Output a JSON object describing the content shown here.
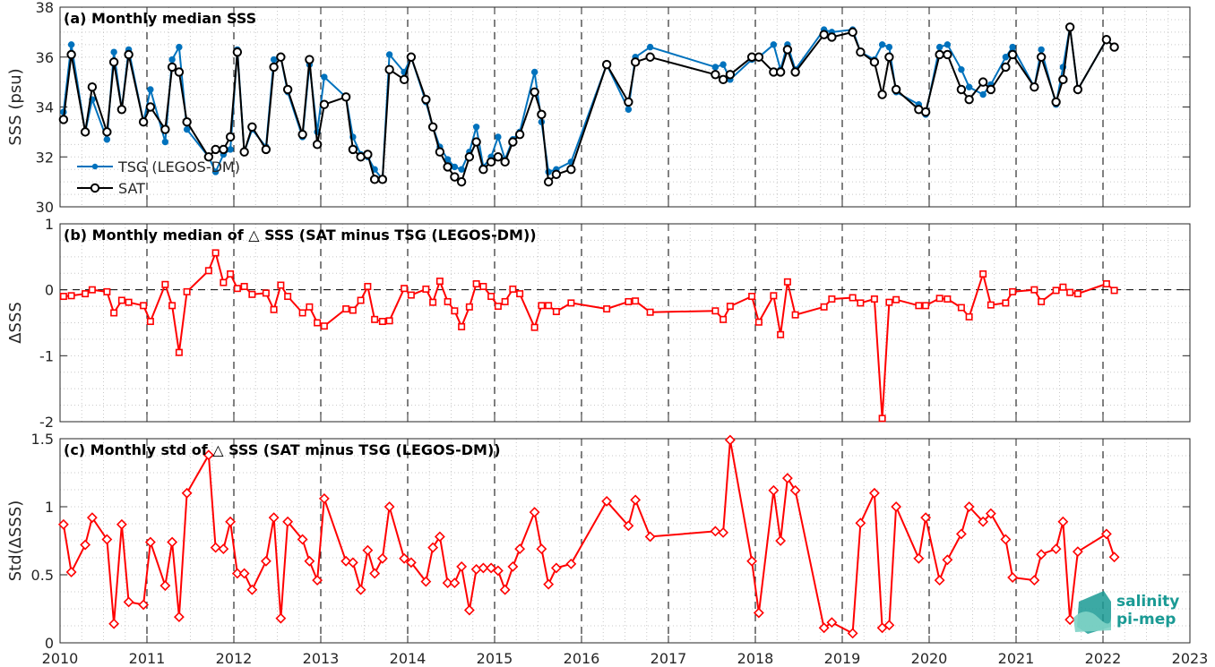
{
  "colors": {
    "tsg": "#0072bd",
    "sat": "#000000",
    "delta": "#ff0000",
    "logo": "#1a9a94"
  },
  "logo": {
    "line1": "salinity",
    "line2": "pi-mep",
    "icon": "wave-logo-icon"
  },
  "chart_data": [
    {
      "type": "line",
      "title": "(a) Monthly median SSS",
      "xlabel": "",
      "ylabel": "SSS (psu)",
      "xlim": [
        2010,
        2023
      ],
      "ylim": [
        30,
        38
      ],
      "yticks": [
        30,
        32,
        34,
        36,
        38
      ],
      "grid": true,
      "legend_position": "middle-left",
      "series": [
        {
          "name": "TSG (LEGOS-DM)",
          "marker": "dot",
          "x": [
            2010.04,
            2010.13,
            2010.29,
            2010.37,
            2010.54,
            2010.62,
            2010.71,
            2010.79,
            2010.96,
            2011.04,
            2011.21,
            2011.29,
            2011.37,
            2011.46,
            2011.71,
            2011.79,
            2011.88,
            2011.96,
            2012.04,
            2012.12,
            2012.21,
            2012.37,
            2012.46,
            2012.54,
            2012.62,
            2012.79,
            2012.87,
            2012.96,
            2013.04,
            2013.29,
            2013.37,
            2013.46,
            2013.54,
            2013.62,
            2013.71,
            2013.79,
            2013.96,
            2014.04,
            2014.21,
            2014.29,
            2014.37,
            2014.46,
            2014.54,
            2014.62,
            2014.71,
            2014.79,
            2014.87,
            2014.96,
            2015.04,
            2015.12,
            2015.21,
            2015.29,
            2015.46,
            2015.54,
            2015.62,
            2015.71,
            2015.88,
            2016.29,
            2016.54,
            2016.62,
            2016.79,
            2017.54,
            2017.63,
            2017.71,
            2017.96,
            2018.04,
            2018.21,
            2018.29,
            2018.37,
            2018.46,
            2018.79,
            2018.88,
            2019.12,
            2019.21,
            2019.37,
            2019.46,
            2019.54,
            2019.62,
            2019.88,
            2019.96,
            2020.12,
            2020.21,
            2020.37,
            2020.46,
            2020.62,
            2020.71,
            2020.88,
            2020.96,
            2021.21,
            2021.29,
            2021.46,
            2021.54,
            2021.62,
            2021.71,
            2022.04,
            2022.13
          ],
          "y": [
            33.8,
            36.5,
            33.0,
            34.3,
            32.7,
            36.2,
            33.9,
            36.3,
            33.4,
            34.7,
            32.6,
            35.9,
            36.4,
            33.1,
            32.0,
            31.4,
            32.1,
            32.3,
            36.3,
            32.2,
            33.1,
            32.4,
            35.9,
            36.0,
            34.6,
            32.8,
            35.7,
            33.0,
            35.2,
            34.4,
            32.8,
            32.1,
            32.0,
            31.5,
            31.1,
            36.1,
            35.4,
            36.0,
            34.2,
            33.2,
            32.4,
            31.9,
            31.6,
            31.5,
            32.2,
            33.2,
            31.6,
            32.0,
            32.8,
            31.9,
            32.7,
            33.0,
            35.4,
            33.4,
            31.4,
            31.5,
            31.8,
            35.7,
            33.9,
            36.0,
            36.4,
            35.6,
            35.7,
            35.1,
            35.9,
            36.0,
            36.5,
            35.5,
            36.5,
            35.5,
            37.1,
            37.0,
            37.1,
            36.2,
            35.9,
            36.5,
            36.4,
            34.6,
            34.1,
            33.7,
            36.4,
            36.5,
            35.5,
            34.8,
            34.5,
            34.9,
            36.0,
            36.4,
            34.8,
            36.3,
            34.1,
            35.6,
            37.2,
            34.7,
            36.7,
            36.4
          ]
        },
        {
          "name": "SAT",
          "marker": "circle",
          "x": [
            2010.04,
            2010.13,
            2010.29,
            2010.37,
            2010.54,
            2010.62,
            2010.71,
            2010.79,
            2010.96,
            2011.04,
            2011.21,
            2011.29,
            2011.37,
            2011.46,
            2011.71,
            2011.79,
            2011.88,
            2011.96,
            2012.04,
            2012.12,
            2012.21,
            2012.37,
            2012.46,
            2012.54,
            2012.62,
            2012.79,
            2012.87,
            2012.96,
            2013.04,
            2013.29,
            2013.37,
            2013.46,
            2013.54,
            2013.62,
            2013.71,
            2013.79,
            2013.96,
            2014.04,
            2014.21,
            2014.29,
            2014.37,
            2014.46,
            2014.54,
            2014.62,
            2014.71,
            2014.79,
            2014.87,
            2014.96,
            2015.04,
            2015.12,
            2015.21,
            2015.29,
            2015.46,
            2015.54,
            2015.62,
            2015.71,
            2015.88,
            2016.29,
            2016.54,
            2016.62,
            2016.79,
            2017.54,
            2017.63,
            2017.71,
            2017.96,
            2018.04,
            2018.21,
            2018.29,
            2018.37,
            2018.46,
            2018.79,
            2018.88,
            2019.12,
            2019.21,
            2019.37,
            2019.46,
            2019.54,
            2019.62,
            2019.88,
            2019.96,
            2020.12,
            2020.21,
            2020.37,
            2020.46,
            2020.62,
            2020.71,
            2020.88,
            2020.96,
            2021.21,
            2021.29,
            2021.46,
            2021.54,
            2021.62,
            2021.71,
            2022.04,
            2022.13
          ],
          "y": [
            33.5,
            36.1,
            33.0,
            34.8,
            33.0,
            35.8,
            33.9,
            36.1,
            33.4,
            34.0,
            33.1,
            35.6,
            35.4,
            33.4,
            32.0,
            32.3,
            32.3,
            32.8,
            36.2,
            32.2,
            33.2,
            32.3,
            35.6,
            36.0,
            34.7,
            32.9,
            35.9,
            32.5,
            34.1,
            34.4,
            32.3,
            32.0,
            32.1,
            31.1,
            31.1,
            35.5,
            35.1,
            36.0,
            34.3,
            33.2,
            32.2,
            31.6,
            31.2,
            31.0,
            32.0,
            32.6,
            31.5,
            31.8,
            32.0,
            31.8,
            32.6,
            32.9,
            34.6,
            33.7,
            31.0,
            31.3,
            31.5,
            35.7,
            34.2,
            35.8,
            36.0,
            35.3,
            35.1,
            35.3,
            36.0,
            36.0,
            35.4,
            35.4,
            36.3,
            35.4,
            36.9,
            36.8,
            37.0,
            36.2,
            35.8,
            34.5,
            36.0,
            34.7,
            33.9,
            33.8,
            36.1,
            36.1,
            34.7,
            34.3,
            35.0,
            34.7,
            35.6,
            36.1,
            34.8,
            36.0,
            34.2,
            35.1,
            37.2,
            34.7,
            36.7,
            36.4
          ]
        }
      ]
    },
    {
      "type": "line",
      "title": "(b) Monthly median of △ SSS (SAT minus TSG (LEGOS-DM))",
      "xlabel": "",
      "ylabel": "ΔSSS",
      "xlim": [
        2010,
        2023
      ],
      "ylim": [
        -2,
        1
      ],
      "yticks": [
        -2,
        -1,
        0,
        1
      ],
      "grid": true,
      "reference_line": 0,
      "series": [
        {
          "marker": "square",
          "x": [
            2010.04,
            2010.13,
            2010.29,
            2010.37,
            2010.54,
            2010.62,
            2010.71,
            2010.79,
            2010.96,
            2011.04,
            2011.21,
            2011.29,
            2011.37,
            2011.46,
            2011.71,
            2011.79,
            2011.88,
            2011.96,
            2012.04,
            2012.12,
            2012.21,
            2012.37,
            2012.46,
            2012.54,
            2012.62,
            2012.79,
            2012.87,
            2012.96,
            2013.04,
            2013.29,
            2013.37,
            2013.46,
            2013.54,
            2013.62,
            2013.71,
            2013.79,
            2013.96,
            2014.04,
            2014.21,
            2014.29,
            2014.37,
            2014.46,
            2014.54,
            2014.62,
            2014.71,
            2014.79,
            2014.87,
            2014.96,
            2015.04,
            2015.12,
            2015.21,
            2015.29,
            2015.46,
            2015.54,
            2015.62,
            2015.71,
            2015.88,
            2016.29,
            2016.54,
            2016.62,
            2016.79,
            2017.54,
            2017.63,
            2017.71,
            2017.96,
            2018.04,
            2018.21,
            2018.29,
            2018.37,
            2018.46,
            2018.79,
            2018.88,
            2019.12,
            2019.21,
            2019.37,
            2019.46,
            2019.54,
            2019.62,
            2019.88,
            2019.96,
            2020.12,
            2020.21,
            2020.37,
            2020.46,
            2020.62,
            2020.71,
            2020.88,
            2020.96,
            2021.21,
            2021.29,
            2021.46,
            2021.54,
            2021.62,
            2021.71,
            2022.04,
            2022.13
          ],
          "y": [
            -0.1,
            -0.09,
            -0.06,
            0.0,
            -0.03,
            -0.35,
            -0.16,
            -0.19,
            -0.24,
            -0.48,
            0.08,
            -0.24,
            -0.95,
            -0.03,
            0.29,
            0.56,
            0.11,
            0.24,
            0.02,
            0.05,
            -0.07,
            -0.05,
            -0.3,
            0.07,
            -0.1,
            -0.35,
            -0.26,
            -0.5,
            -0.55,
            -0.29,
            -0.31,
            -0.16,
            0.05,
            -0.45,
            -0.48,
            -0.47,
            0.02,
            -0.08,
            0.01,
            -0.19,
            0.13,
            -0.18,
            -0.32,
            -0.56,
            -0.26,
            0.09,
            0.05,
            -0.1,
            -0.25,
            -0.18,
            0.01,
            -0.06,
            -0.57,
            -0.24,
            -0.24,
            -0.33,
            -0.2,
            -0.29,
            -0.18,
            -0.17,
            -0.34,
            -0.32,
            -0.45,
            -0.25,
            -0.1,
            -0.49,
            -0.09,
            -0.68,
            0.12,
            -0.38,
            -0.26,
            -0.14,
            -0.12,
            -0.2,
            -0.14,
            -1.95,
            -0.19,
            -0.15,
            -0.24,
            -0.24,
            -0.13,
            -0.14,
            -0.27,
            -0.41,
            0.24,
            -0.23,
            -0.2,
            -0.03,
            0.0,
            -0.18,
            -0.01,
            0.04,
            -0.04,
            -0.06,
            0.09,
            -0.01
          ]
        }
      ]
    },
    {
      "type": "line",
      "title": "(c) Monthly std of △ SSS (SAT minus TSG (LEGOS-DM))",
      "xlabel": "",
      "ylabel": "Std(ΔSSS)",
      "xlim": [
        2010,
        2023
      ],
      "ylim": [
        0,
        1.5
      ],
      "yticks": [
        0,
        0.5,
        1,
        1.5
      ],
      "xticks": [
        2010,
        2011,
        2012,
        2013,
        2014,
        2015,
        2016,
        2017,
        2018,
        2019,
        2020,
        2021,
        2022,
        2023
      ],
      "grid": true,
      "series": [
        {
          "marker": "diamond",
          "x": [
            2010.04,
            2010.13,
            2010.29,
            2010.37,
            2010.54,
            2010.62,
            2010.71,
            2010.79,
            2010.96,
            2011.04,
            2011.21,
            2011.29,
            2011.37,
            2011.46,
            2011.71,
            2011.79,
            2011.88,
            2011.96,
            2012.04,
            2012.12,
            2012.21,
            2012.37,
            2012.46,
            2012.54,
            2012.62,
            2012.79,
            2012.87,
            2012.96,
            2013.04,
            2013.29,
            2013.37,
            2013.46,
            2013.54,
            2013.62,
            2013.71,
            2013.79,
            2013.96,
            2014.04,
            2014.21,
            2014.29,
            2014.37,
            2014.46,
            2014.54,
            2014.62,
            2014.71,
            2014.79,
            2014.87,
            2014.96,
            2015.04,
            2015.12,
            2015.21,
            2015.29,
            2015.46,
            2015.54,
            2015.62,
            2015.71,
            2015.88,
            2016.29,
            2016.54,
            2016.62,
            2016.79,
            2017.54,
            2017.63,
            2017.71,
            2017.96,
            2018.04,
            2018.21,
            2018.29,
            2018.37,
            2018.46,
            2018.79,
            2018.88,
            2019.12,
            2019.21,
            2019.37,
            2019.46,
            2019.54,
            2019.62,
            2019.88,
            2019.96,
            2020.12,
            2020.21,
            2020.37,
            2020.46,
            2020.62,
            2020.71,
            2020.88,
            2020.96,
            2021.21,
            2021.29,
            2021.46,
            2021.54,
            2021.62,
            2021.71,
            2022.04,
            2022.13
          ],
          "y": [
            0.87,
            0.52,
            0.72,
            0.92,
            0.76,
            0.14,
            0.87,
            0.3,
            0.28,
            0.74,
            0.42,
            0.74,
            0.19,
            1.1,
            1.38,
            0.7,
            0.69,
            0.89,
            0.51,
            0.51,
            0.39,
            0.6,
            0.92,
            0.18,
            0.89,
            0.76,
            0.6,
            0.46,
            1.06,
            0.6,
            0.59,
            0.39,
            0.68,
            0.51,
            0.62,
            1.0,
            0.62,
            0.59,
            0.45,
            0.7,
            0.78,
            0.44,
            0.44,
            0.56,
            0.24,
            0.54,
            0.55,
            0.55,
            0.53,
            0.39,
            0.56,
            0.69,
            0.96,
            0.69,
            0.43,
            0.55,
            0.58,
            1.04,
            0.86,
            1.05,
            0.78,
            0.82,
            0.81,
            1.49,
            0.6,
            0.22,
            1.12,
            0.75,
            1.21,
            1.12,
            0.11,
            0.15,
            0.07,
            0.88,
            1.1,
            0.11,
            0.13,
            1.0,
            0.62,
            0.92,
            0.46,
            0.61,
            0.8,
            1.0,
            0.89,
            0.95,
            0.76,
            0.48,
            0.46,
            0.65,
            0.69,
            0.89,
            0.17,
            0.67,
            0.8,
            0.63
          ]
        }
      ]
    }
  ]
}
